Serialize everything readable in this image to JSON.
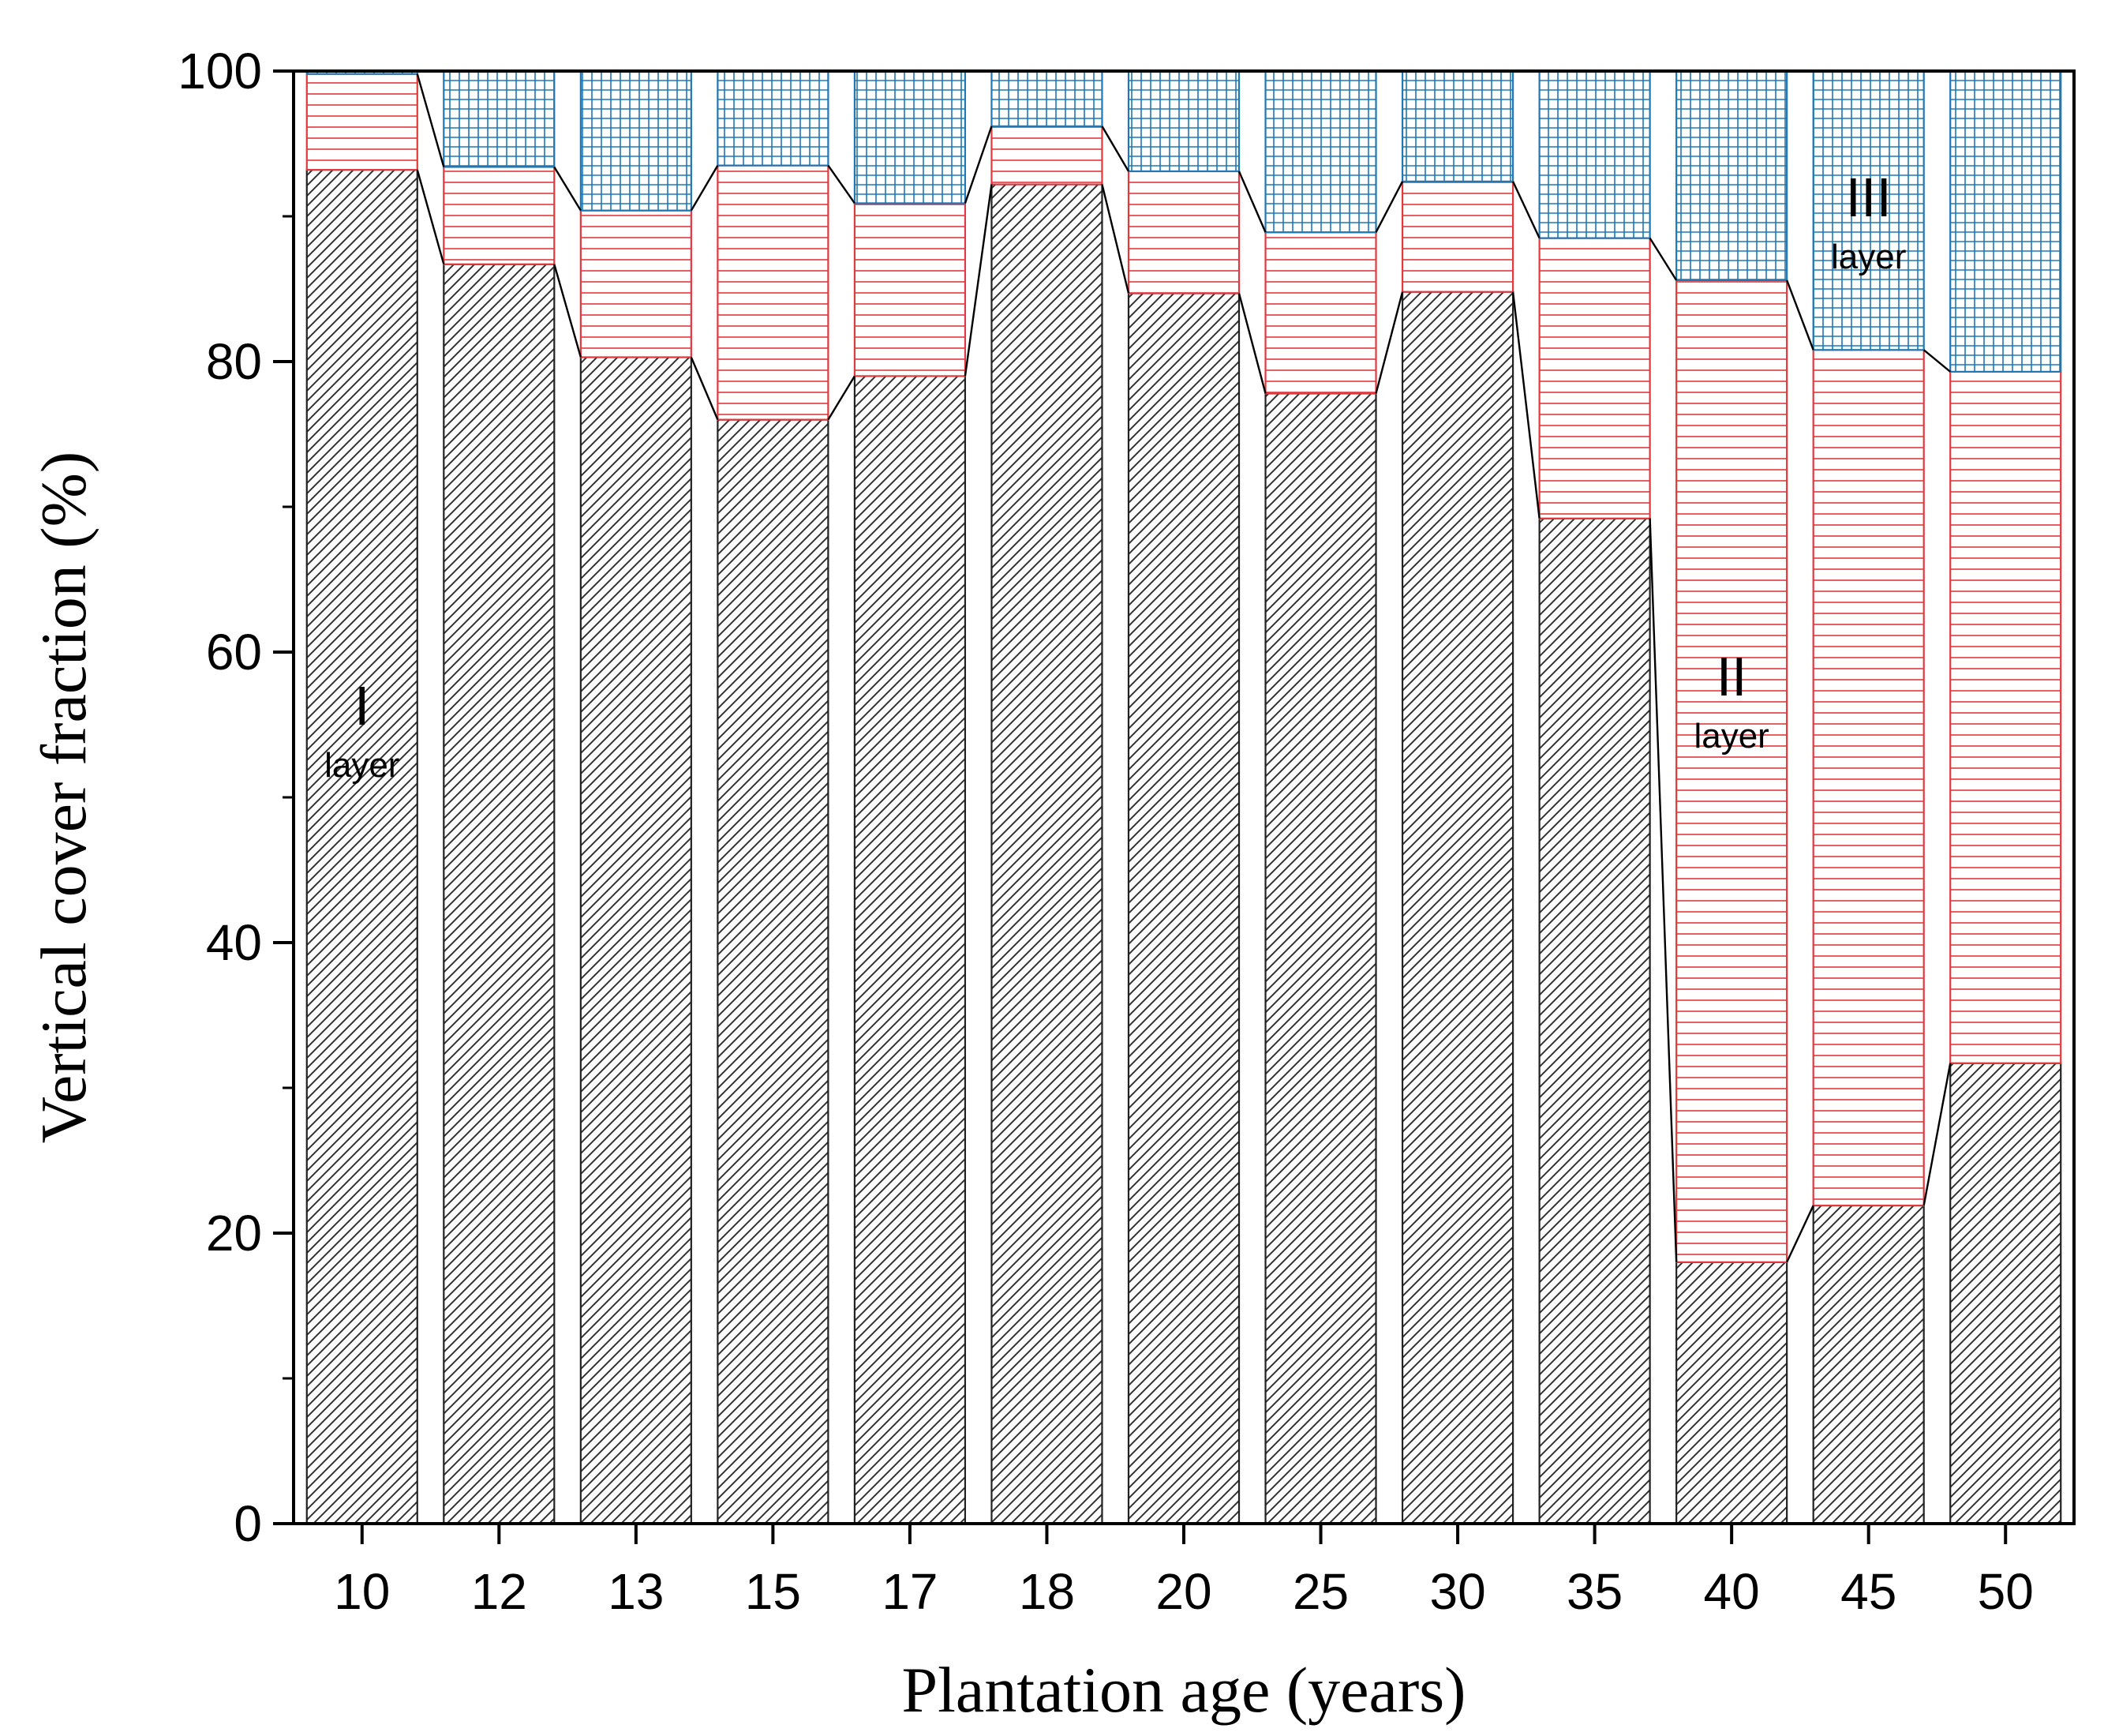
{
  "chart_data": {
    "type": "bar",
    "stacked": true,
    "title": "",
    "xlabel": "Plantation age (years)",
    "ylabel": "Vertical cover fraction (%)",
    "ylim": [
      0,
      100
    ],
    "yticks": [
      0,
      20,
      40,
      60,
      80,
      100
    ],
    "categories": [
      "10",
      "12",
      "13",
      "15",
      "17",
      "18",
      "20",
      "25",
      "30",
      "35",
      "40",
      "45",
      "50"
    ],
    "series": [
      {
        "name": "I layer",
        "color": "#000000",
        "pattern": "diagonal",
        "values": [
          93.2,
          86.7,
          80.3,
          76.0,
          79.0,
          92.2,
          84.7,
          77.8,
          84.8,
          69.2,
          18.0,
          21.9,
          31.7
        ]
      },
      {
        "name": "II layer",
        "color": "#e0393e",
        "pattern": "horizontal",
        "values": [
          6.6,
          6.7,
          10.1,
          17.5,
          11.9,
          4.0,
          8.4,
          11.1,
          7.6,
          19.3,
          67.6,
          58.9,
          47.6
        ]
      },
      {
        "name": "III layer",
        "color": "#1f78b4",
        "pattern": "grid",
        "values": [
          0.2,
          6.6,
          9.6,
          6.5,
          9.1,
          3.8,
          6.9,
          11.1,
          7.6,
          11.5,
          14.4,
          19.2,
          20.7
        ]
      }
    ],
    "annotations": [
      {
        "roman": "I",
        "word": "layer",
        "series": 0
      },
      {
        "roman": "II",
        "word": "layer",
        "series": 1
      },
      {
        "roman": "III",
        "word": "layer",
        "series": 2
      }
    ]
  }
}
